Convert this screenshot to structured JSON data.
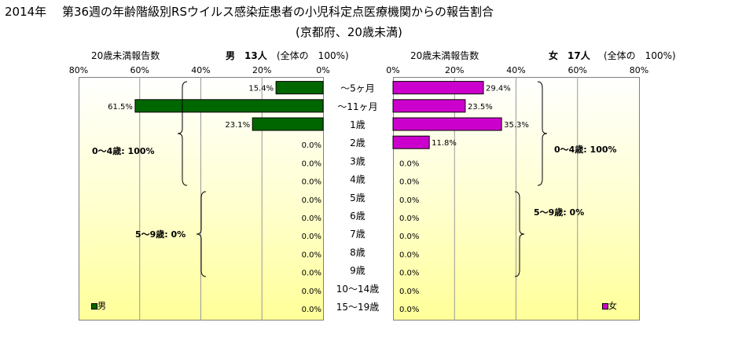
{
  "title_line1": "2014年　 第36週の年齢階級別RSウイルス感染症患者の小児科定点医療機関からの報告割合",
  "title_line2": "(京都府、20歳未満)",
  "left_header": {
    "axis_title": "20歳未満報告数",
    "group": "男",
    "count": "13人",
    "total": "(全体の　100%)"
  },
  "right_header": {
    "axis_title": "20歳未満報告数",
    "group": "女",
    "count": "17人",
    "total": "(全体の　100%)"
  },
  "brace_labels": {
    "male_0_4": "0～4歳: 100%",
    "male_5_9": "5～9歳: 0%",
    "female_0_4": "0～4歳: 100%",
    "female_5_9": "5～9歳: 0%"
  },
  "legend": {
    "male": "男",
    "female": "女"
  },
  "colors": {
    "male": "#006600",
    "female": "#cc00cc",
    "grid": "#999999"
  },
  "chart_data": {
    "type": "bar",
    "orientation": "horizontal-pyramid",
    "categories": [
      "～5ヶ月",
      "～11ヶ月",
      "1歳",
      "2歳",
      "3歳",
      "4歳",
      "5歳",
      "6歳",
      "7歳",
      "8歳",
      "9歳",
      "10～14歳",
      "15～19歳"
    ],
    "xlim": [
      0,
      80
    ],
    "tick_labels": [
      "0%",
      "20%",
      "40%",
      "60%",
      "80%"
    ],
    "series": [
      {
        "name": "男",
        "values": [
          15.4,
          61.5,
          23.1,
          0,
          0,
          0,
          0,
          0,
          0,
          0,
          0,
          0,
          0
        ],
        "labels": [
          "15.4%",
          "61.5%",
          "23.1%",
          "0.0%",
          "0.0%",
          "0.0%",
          "0.0%",
          "0.0%",
          "0.0%",
          "0.0%",
          "0.0%",
          "0.0%",
          "0.0%"
        ]
      },
      {
        "name": "女",
        "values": [
          29.4,
          23.5,
          35.3,
          11.8,
          0,
          0,
          0,
          0,
          0,
          0,
          0,
          0,
          0
        ],
        "labels": [
          "29.4%",
          "23.5%",
          "35.3%",
          "11.8%",
          "0.0%",
          "0.0%",
          "0.0%",
          "0.0%",
          "0.0%",
          "0.0%",
          "0.0%",
          "0.0%",
          "0.0%"
        ]
      }
    ],
    "grid": true,
    "legend_position": "bottom-corners"
  }
}
